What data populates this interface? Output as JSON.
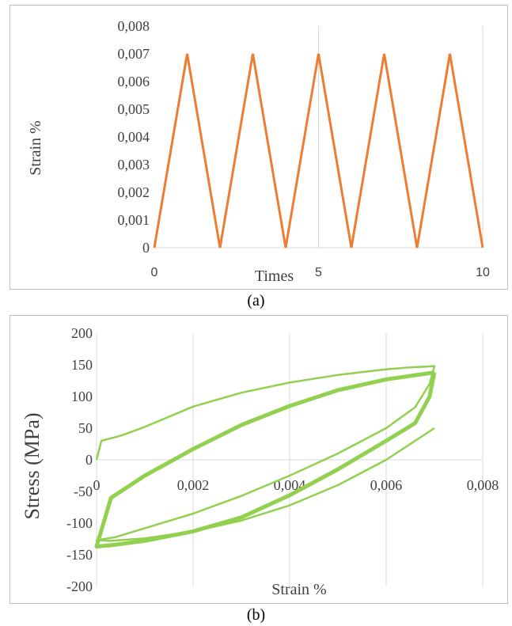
{
  "chart_data": [
    {
      "type": "line",
      "panel_label": "(a)",
      "title": "",
      "xlabel": "Times",
      "ylabel": "Strain    %",
      "xlim": [
        0,
        10
      ],
      "ylim": [
        0,
        0.008
      ],
      "x_ticks": [
        0,
        5,
        10
      ],
      "x_tick_labels": [
        "0",
        "5",
        "10"
      ],
      "y_ticks": [
        0,
        0.001,
        0.002,
        0.003,
        0.004,
        0.005,
        0.006,
        0.007,
        0.008
      ],
      "y_tick_labels": [
        "0",
        "0,001",
        "0,002",
        "0,003",
        "0,004",
        "0,005",
        "0,006",
        "0,007",
        "0,008"
      ],
      "grid": "vertical",
      "legend": "none",
      "series": [
        {
          "color": "#ed7d31",
          "x": [
            0,
            1,
            2,
            3,
            4,
            5,
            6,
            7,
            8,
            9,
            10
          ],
          "y": [
            0,
            0.007,
            0,
            0.007,
            0,
            0.007,
            0,
            0.007,
            0,
            0.007,
            0
          ]
        }
      ]
    },
    {
      "type": "line",
      "panel_label": "(b)",
      "title": "",
      "xlabel": "Strain    %",
      "ylabel": "Stress  (MPa)",
      "xlim": [
        0,
        0.008
      ],
      "ylim": [
        -200,
        200
      ],
      "x_ticks": [
        0,
        0.002,
        0.004,
        0.006,
        0.008
      ],
      "x_tick_labels": [
        "0",
        "0,002",
        "0,004",
        "0,006",
        "0,008"
      ],
      "y_ticks": [
        -200,
        -150,
        -100,
        -50,
        0,
        50,
        100,
        150,
        200
      ],
      "y_tick_labels": [
        "-200",
        "-150",
        "-100",
        "-50",
        "0",
        "50",
        "100",
        "150",
        "200"
      ],
      "grid": "vertical",
      "legend": "none",
      "series": [
        {
          "color": "#92d050",
          "style": "thin",
          "x": [
            0,
            0.0001,
            0.0005,
            0.001,
            0.002,
            0.003,
            0.004,
            0.005,
            0.006,
            0.0065,
            0.007,
            0.0069,
            0.0066,
            0.006,
            0.005,
            0.004,
            0.003,
            0.002,
            0.001,
            0.0004,
            0,
            0.0003,
            0.001,
            0.002,
            0.003,
            0.004,
            0.005,
            0.006,
            0.007
          ],
          "y": [
            0,
            30,
            38,
            52,
            84,
            106,
            122,
            134,
            143,
            146,
            148,
            120,
            83,
            50,
            10,
            -25,
            -57,
            -85,
            -108,
            -122,
            -127,
            -128,
            -124,
            -113,
            -96,
            -72,
            -40,
            0,
            50
          ]
        },
        {
          "color": "#92d050",
          "style": "thick",
          "x": [
            0.007,
            0.0069,
            0.0066,
            0.006,
            0.005,
            0.004,
            0.003,
            0.002,
            0.001,
            0.0004,
            0,
            0.0003,
            0.001,
            0.002,
            0.003,
            0.004,
            0.005,
            0.006,
            0.007
          ],
          "y": [
            138,
            100,
            58,
            30,
            -15,
            -56,
            -91,
            -113,
            -128,
            -134,
            -137,
            -60,
            -25,
            17,
            55,
            85,
            110,
            127,
            138
          ]
        }
      ]
    }
  ]
}
